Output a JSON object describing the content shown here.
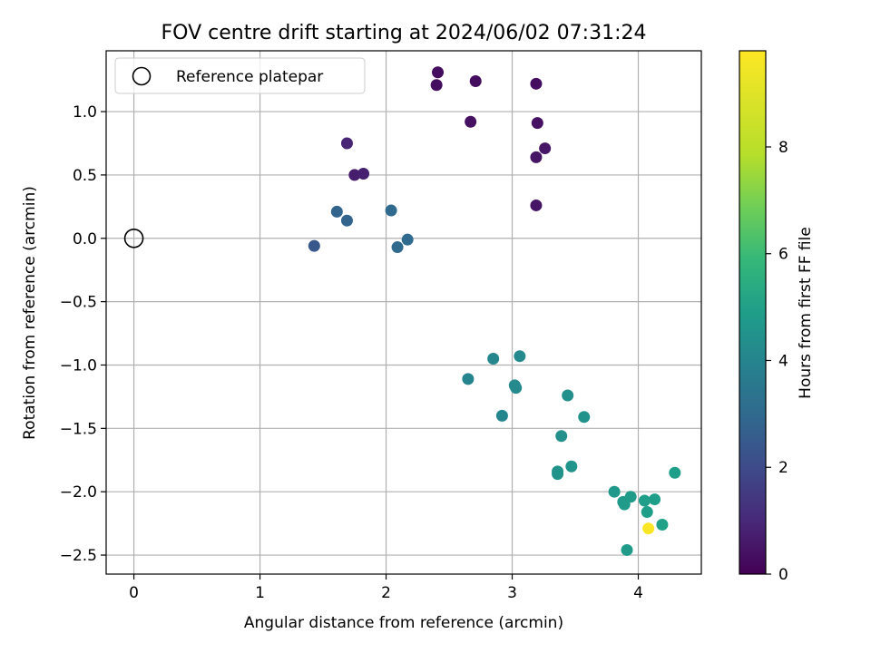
{
  "chart_data": {
    "type": "scatter",
    "title": "FOV centre drift starting at 2024/06/02 07:31:24",
    "xlabel": "Angular distance from reference (arcmin)",
    "ylabel": "Rotation from reference (arcmin)",
    "xlim": [
      -0.22,
      4.5
    ],
    "ylim": [
      -2.65,
      1.48
    ],
    "xticks": [
      0,
      1,
      2,
      3,
      4
    ],
    "xtick_labels": [
      "0",
      "1",
      "2",
      "3",
      "4"
    ],
    "yticks": [
      -2.5,
      -2.0,
      -1.5,
      -1.0,
      -0.5,
      0.0,
      0.5,
      1.0
    ],
    "ytick_labels": [
      "−2.5",
      "−2.0",
      "−1.5",
      "−1.0",
      "−0.5",
      "0.0",
      "0.5",
      "1.0"
    ],
    "grid": true,
    "legend": {
      "placement": "top-left",
      "entries": [
        "Reference platepar"
      ]
    },
    "reference_point": {
      "name": "Reference platepar",
      "x": 0,
      "y": 0
    },
    "colorbar": {
      "label": "Hours from first FF file",
      "colormap": "viridis",
      "range": [
        0,
        9.8
      ],
      "ticks": [
        0,
        2,
        4,
        6,
        8
      ],
      "tick_labels": [
        "0",
        "2",
        "4",
        "6",
        "8"
      ]
    },
    "points": [
      {
        "x": 2.41,
        "y": 1.31,
        "t": 0.3
      },
      {
        "x": 2.4,
        "y": 1.21,
        "t": 0.3
      },
      {
        "x": 2.71,
        "y": 1.24,
        "t": 0.3
      },
      {
        "x": 3.19,
        "y": 1.22,
        "t": 0.3
      },
      {
        "x": 2.67,
        "y": 0.92,
        "t": 0.4
      },
      {
        "x": 3.2,
        "y": 0.91,
        "t": 0.4
      },
      {
        "x": 1.69,
        "y": 0.75,
        "t": 0.9
      },
      {
        "x": 3.26,
        "y": 0.71,
        "t": 0.5
      },
      {
        "x": 3.19,
        "y": 0.64,
        "t": 0.5
      },
      {
        "x": 1.75,
        "y": 0.5,
        "t": 0.7
      },
      {
        "x": 1.82,
        "y": 0.51,
        "t": 0.8
      },
      {
        "x": 3.19,
        "y": 0.26,
        "t": 0.5
      },
      {
        "x": 1.61,
        "y": 0.21,
        "t": 2.8
      },
      {
        "x": 2.04,
        "y": 0.22,
        "t": 3.0
      },
      {
        "x": 1.69,
        "y": 0.14,
        "t": 2.8
      },
      {
        "x": 2.17,
        "y": -0.01,
        "t": 3.0
      },
      {
        "x": 1.43,
        "y": -0.06,
        "t": 2.4
      },
      {
        "x": 2.09,
        "y": -0.07,
        "t": 3.0
      },
      {
        "x": 3.06,
        "y": -0.93,
        "t": 4.2
      },
      {
        "x": 2.85,
        "y": -0.95,
        "t": 4.1
      },
      {
        "x": 2.65,
        "y": -1.11,
        "t": 4.0
      },
      {
        "x": 3.02,
        "y": -1.16,
        "t": 4.2
      },
      {
        "x": 3.03,
        "y": -1.18,
        "t": 4.2
      },
      {
        "x": 3.44,
        "y": -1.24,
        "t": 4.4
      },
      {
        "x": 2.92,
        "y": -1.4,
        "t": 4.1
      },
      {
        "x": 3.57,
        "y": -1.41,
        "t": 4.5
      },
      {
        "x": 3.39,
        "y": -1.56,
        "t": 4.4
      },
      {
        "x": 3.36,
        "y": -1.84,
        "t": 4.5
      },
      {
        "x": 3.36,
        "y": -1.86,
        "t": 4.5
      },
      {
        "x": 3.47,
        "y": -1.8,
        "t": 4.6
      },
      {
        "x": 4.29,
        "y": -1.85,
        "t": 4.9
      },
      {
        "x": 3.81,
        "y": -2.0,
        "t": 4.7
      },
      {
        "x": 3.94,
        "y": -2.04,
        "t": 4.8
      },
      {
        "x": 3.88,
        "y": -2.08,
        "t": 4.8
      },
      {
        "x": 3.89,
        "y": -2.1,
        "t": 4.8
      },
      {
        "x": 4.05,
        "y": -2.07,
        "t": 4.9
      },
      {
        "x": 4.13,
        "y": -2.06,
        "t": 4.9
      },
      {
        "x": 4.07,
        "y": -2.16,
        "t": 4.9
      },
      {
        "x": 4.19,
        "y": -2.26,
        "t": 5.0
      },
      {
        "x": 4.08,
        "y": -2.29,
        "t": 9.7
      },
      {
        "x": 3.91,
        "y": -2.46,
        "t": 4.8
      }
    ]
  }
}
